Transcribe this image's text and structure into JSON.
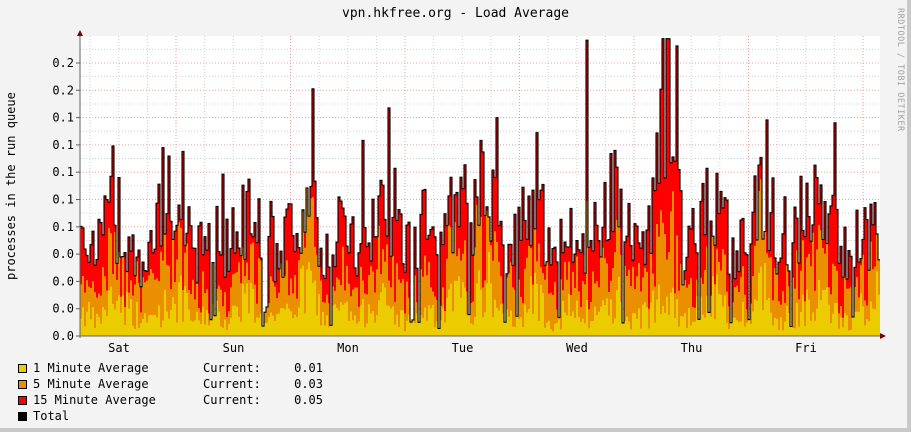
{
  "title": "vpn.hkfree.org - Load Average",
  "watermark": "RRDTOOL / TOBI OETIKER",
  "colors": {
    "one_min": "#EACC00",
    "five_min": "#EA8F00",
    "fifteen_min": "#FF0000",
    "total": "#000000",
    "grid_major": "#e8a0a0",
    "grid_minor": "#d0d0d0",
    "axis": "#800000"
  },
  "chart_data": {
    "type": "area",
    "title": "vpn.hkfree.org - Load Average",
    "xlabel": "",
    "ylabel": "processes in the run queue",
    "x_ticks": [
      "Sat",
      "Sun",
      "Mon",
      "Tue",
      "Wed",
      "Thu",
      "Fri"
    ],
    "y_tick_labels": [
      "0.0",
      "0.0",
      "0.0",
      "0.0",
      "0.1",
      "0.1",
      "0.1",
      "0.1",
      "0.1",
      "0.2",
      "0.2",
      "0.2"
    ],
    "y_tick_values": [
      0.0,
      0.02,
      0.04,
      0.06,
      0.08,
      0.1,
      0.12,
      0.14,
      0.16,
      0.18,
      0.2,
      0.22
    ],
    "ylim": [
      0,
      0.22
    ],
    "grid": true,
    "legend_position": "bottom-left",
    "series": [
      {
        "name": "1 Minute Average",
        "current": "0.01",
        "stacked": true
      },
      {
        "name": "5 Minute Average",
        "current": "0.03",
        "stacked": true
      },
      {
        "name": "15 Minute Average",
        "current": "0.05",
        "stacked": true
      },
      {
        "name": "Total",
        "line": true
      }
    ],
    "profile_1min": [
      0.02,
      0.01,
      0.03,
      0.02,
      0.01,
      0.02,
      0.03,
      0.01,
      0.02,
      0.01,
      0.03,
      0.02,
      0.01,
      0.02,
      0.04,
      0.01,
      0.02,
      0.01,
      0.03,
      0.02,
      0.01,
      0.02,
      0.01,
      0.03,
      0.02,
      0.04,
      0.01,
      0.02,
      0.03,
      0.01,
      0.02,
      0.01,
      0.02,
      0.03,
      0.01,
      0.02,
      0.05,
      0.01,
      0.02,
      0.03,
      0.01,
      0.02,
      0.04,
      0.01,
      0.02,
      0.03,
      0.02,
      0.01,
      0.02,
      0.03
    ],
    "profile_5min": [
      0.03,
      0.02,
      0.04,
      0.03,
      0.02,
      0.04,
      0.05,
      0.02,
      0.03,
      0.02,
      0.04,
      0.03,
      0.02,
      0.03,
      0.05,
      0.02,
      0.03,
      0.02,
      0.04,
      0.03,
      0.02,
      0.03,
      0.02,
      0.04,
      0.03,
      0.06,
      0.02,
      0.03,
      0.05,
      0.02,
      0.03,
      0.02,
      0.03,
      0.05,
      0.02,
      0.03,
      0.07,
      0.02,
      0.03,
      0.04,
      0.02,
      0.03,
      0.06,
      0.02,
      0.03,
      0.04,
      0.03,
      0.02,
      0.03,
      0.04
    ],
    "profile_total": [
      0.09,
      0.07,
      0.1,
      0.08,
      0.05,
      0.1,
      0.13,
      0.06,
      0.09,
      0.07,
      0.1,
      0.08,
      0.07,
      0.09,
      0.11,
      0.06,
      0.09,
      0.07,
      0.1,
      0.09,
      0.07,
      0.09,
      0.06,
      0.1,
      0.09,
      0.14,
      0.06,
      0.09,
      0.12,
      0.06,
      0.09,
      0.07,
      0.09,
      0.13,
      0.07,
      0.09,
      0.22,
      0.06,
      0.09,
      0.11,
      0.07,
      0.09,
      0.13,
      0.06,
      0.09,
      0.11,
      0.09,
      0.07,
      0.09,
      0.08
    ]
  },
  "legend": [
    {
      "label": "1 Minute Average",
      "current_label": "Current:",
      "value": "0.01",
      "color": "#EACC00"
    },
    {
      "label": "5 Minute Average",
      "current_label": "Current:",
      "value": "0.03",
      "color": "#EA8F00"
    },
    {
      "label": "15 Minute Average",
      "current_label": "Current:",
      "value": "0.05",
      "color": "#FF0000"
    },
    {
      "label": "Total",
      "current_label": "",
      "value": "",
      "color": "#000000"
    }
  ]
}
